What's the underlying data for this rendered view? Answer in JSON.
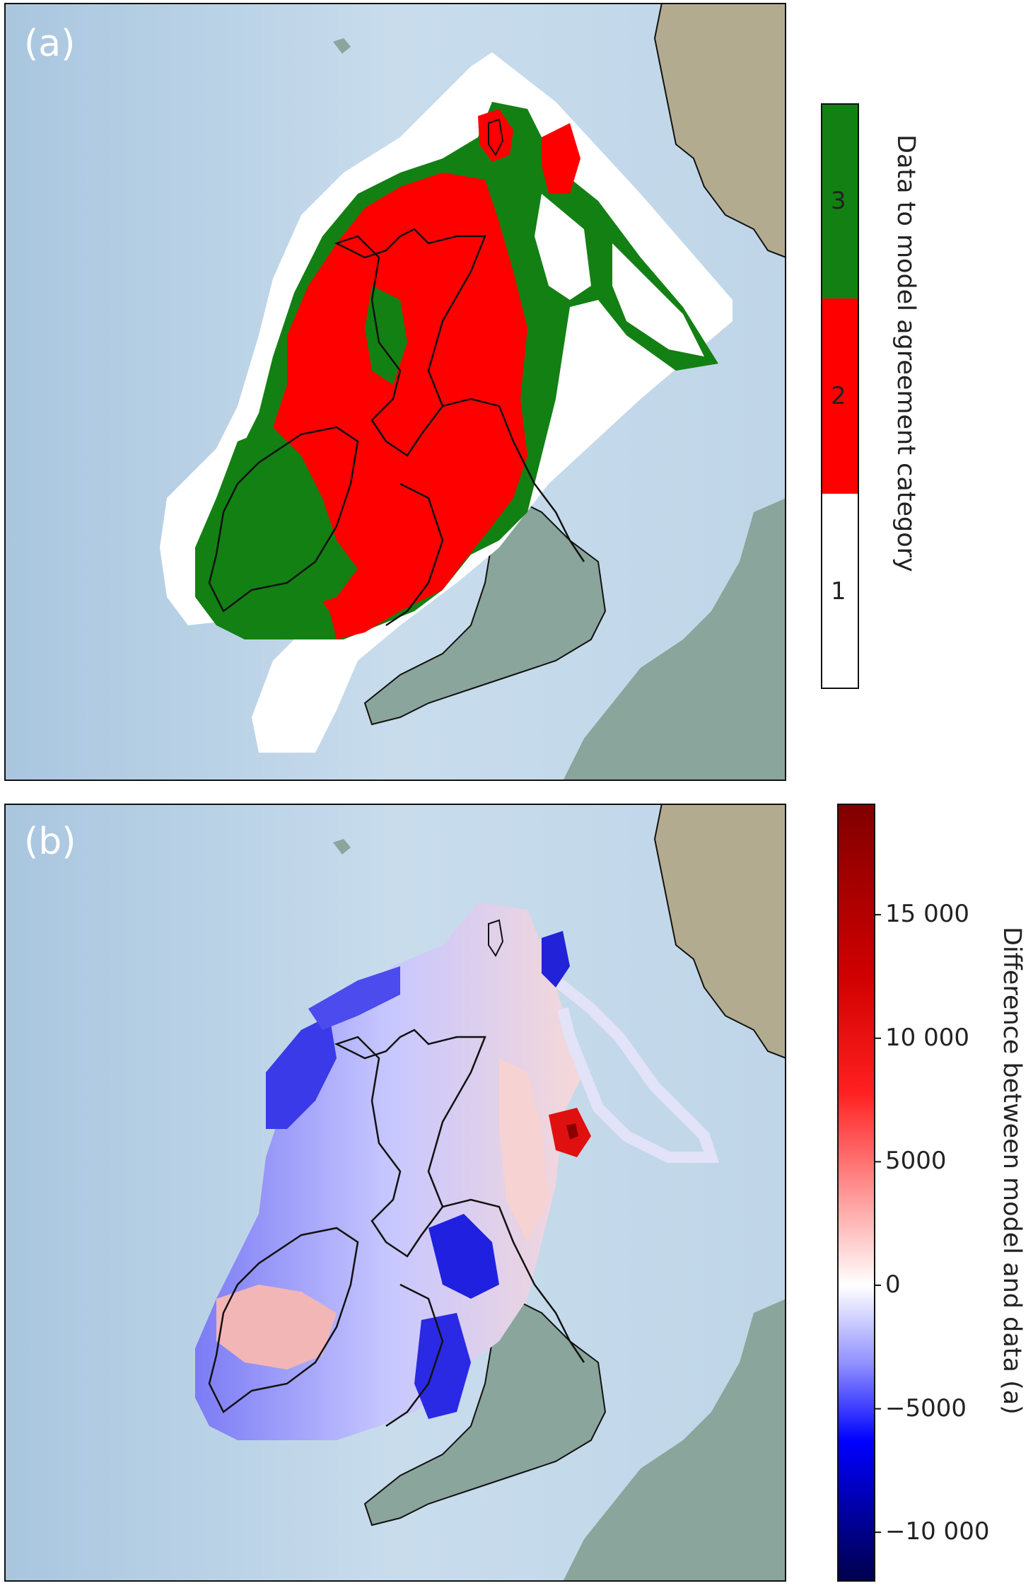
{
  "panel_a": {
    "letter": "(a)",
    "legend": {
      "label": "Data to model agreement category",
      "categories": [
        {
          "value": "3",
          "color": "#138013"
        },
        {
          "value": "2",
          "color": "#ff0000"
        },
        {
          "value": "1",
          "color": "#ffffff"
        }
      ]
    }
  },
  "panel_b": {
    "letter": "(b)",
    "legend": {
      "label": "Difference between model and data (a)",
      "ticks": [
        {
          "value": 15000,
          "label": "15 000"
        },
        {
          "value": 10000,
          "label": "10 000"
        },
        {
          "value": 5000,
          "label": "5000"
        },
        {
          "value": 0,
          "label": "0"
        },
        {
          "value": -5000,
          "label": "−5000"
        },
        {
          "value": -10000,
          "label": "−10 000"
        }
      ],
      "range": [
        -12000,
        19500
      ]
    }
  },
  "colors": {
    "sea": "#bcd3e6",
    "land": "#8aa59b",
    "norway_land": "#b7ae93",
    "coast": "#111111"
  }
}
